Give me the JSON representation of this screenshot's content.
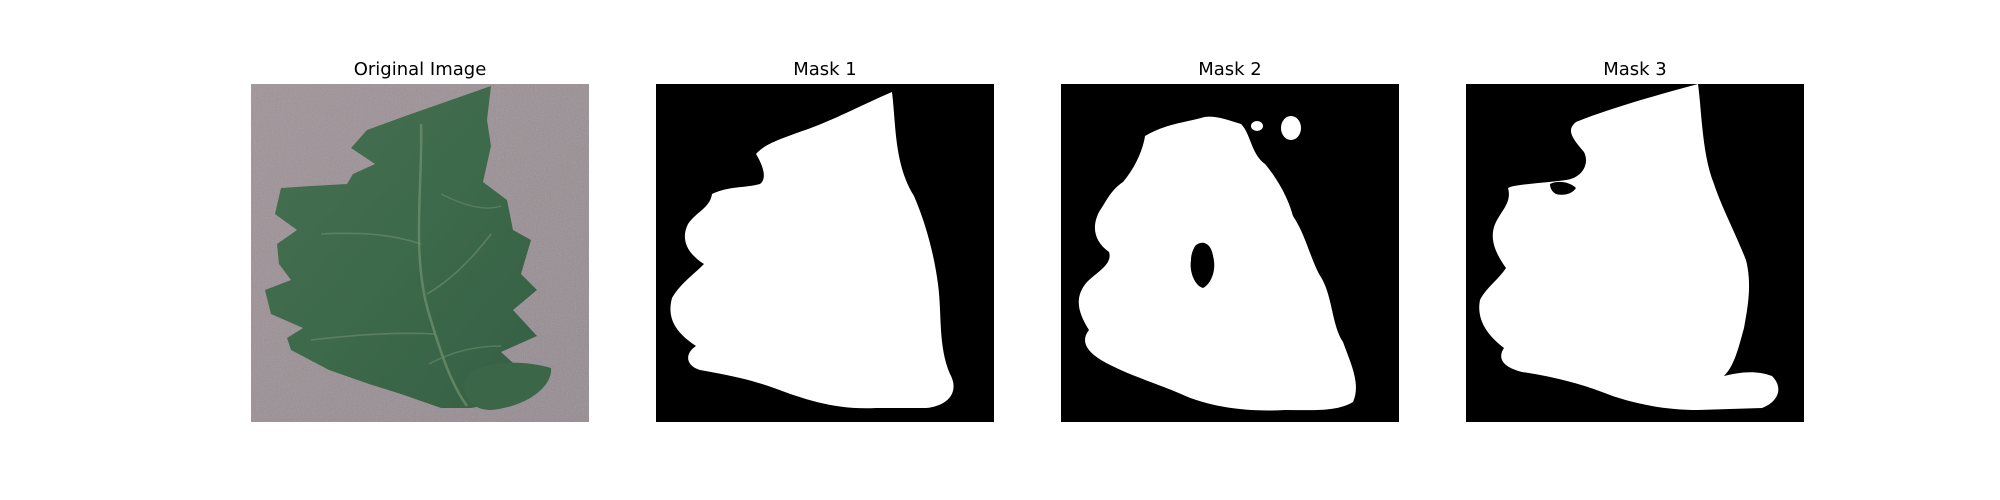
{
  "figure": {
    "panels": [
      {
        "title": "Original Image"
      },
      {
        "title": "Mask 1"
      },
      {
        "title": "Mask 2"
      },
      {
        "title": "Mask 3"
      }
    ]
  },
  "colors": {
    "background": "#ffffff",
    "mask_background": "#000000",
    "mask_foreground": "#ffffff",
    "photo_background": "#9e9196",
    "leaf": "#3f6b4c"
  }
}
